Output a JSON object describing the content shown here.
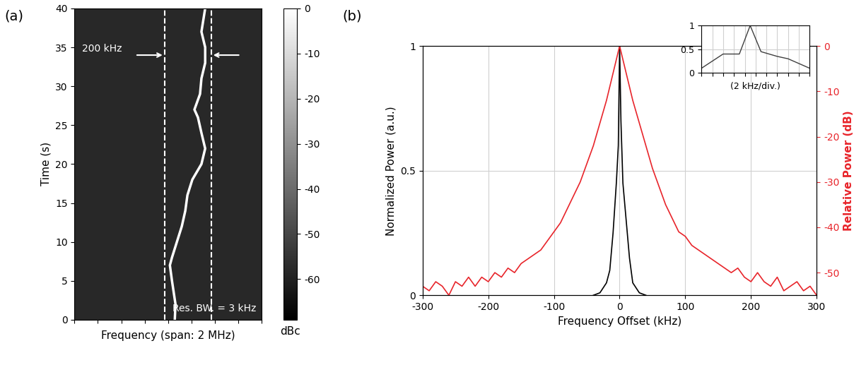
{
  "chart_data": [
    {
      "panel_label": "(a)",
      "type": "spectrogram",
      "x_label": "Frequency (span: 2 MHz)",
      "y_label": "Time (s)",
      "xlim": [
        -400,
        400
      ],
      "xticks": [
        -400,
        -300,
        -200,
        -100,
        0,
        100,
        200,
        300,
        400
      ],
      "ylim": [
        0,
        40
      ],
      "yticks": [
        0,
        5,
        10,
        15,
        20,
        25,
        30,
        35,
        40
      ],
      "tick_labels": "y",
      "grid": false,
      "color": "gray",
      "background_level": -58,
      "trace": {
        "level": 0,
        "time": [
          0,
          2,
          5,
          7,
          8,
          10,
          12,
          14,
          16,
          18,
          20,
          22,
          24,
          26,
          27,
          29,
          31,
          33,
          35,
          37,
          40
        ],
        "frequency": [
          29,
          32,
          17,
          8,
          17,
          38,
          59,
          74,
          83,
          104,
          143,
          159,
          143,
          128,
          113,
          137,
          143,
          159,
          159,
          143,
          159
        ]
      },
      "markers": [
        -15,
        185
      ],
      "annotations": [
        "200 kHz",
        "Res. BW. = 3 kHz"
      ],
      "colorbar": {
        "range": [
          -69,
          0
        ],
        "ticks": [
          0,
          -10,
          -20,
          -30,
          -40,
          -50,
          -60
        ],
        "label": "dBc"
      }
    },
    {
      "panel_label": "(b)",
      "type": "line",
      "x_label": "Frequency Offset (kHz)",
      "y_label": "Normalized Power (a.u.)",
      "y2_label": "Relative Power (dB)",
      "xlim": [
        -300,
        300
      ],
      "xticks": [
        -300,
        -200,
        -100,
        0,
        100,
        200,
        300
      ],
      "ylim": [
        0,
        1
      ],
      "yticks": [
        0,
        0.5,
        1
      ],
      "y2lim": [
        -55,
        0
      ],
      "y2ticks": [
        0,
        -10,
        -20,
        -30,
        -40,
        -50
      ],
      "grid": true,
      "series": [
        {
          "color": "#000000",
          "x": [
            -40,
            -30,
            -20,
            -15,
            -10,
            -5,
            -2,
            0,
            2,
            5,
            10,
            15,
            20,
            30,
            40
          ],
          "values": [
            0,
            0.01,
            0.05,
            0.1,
            0.25,
            0.45,
            0.6,
            1,
            0.7,
            0.45,
            0.3,
            0.15,
            0.05,
            0.01,
            0
          ]
        },
        {
          "color": "#e8252b",
          "axis": "y2",
          "x": [
            -300,
            -290,
            -280,
            -270,
            -260,
            -250,
            -240,
            -230,
            -220,
            -210,
            -200,
            -190,
            -180,
            -170,
            -160,
            -150,
            -140,
            -130,
            -120,
            -110,
            -100,
            -90,
            -80,
            -70,
            -60,
            -50,
            -40,
            -30,
            -20,
            -10,
            0,
            10,
            20,
            30,
            40,
            50,
            60,
            70,
            80,
            90,
            100,
            110,
            120,
            130,
            140,
            150,
            160,
            170,
            180,
            190,
            200,
            210,
            220,
            230,
            240,
            250,
            260,
            270,
            280,
            290,
            300
          ],
          "values": [
            -53,
            -54,
            -52,
            -53,
            -55,
            -52,
            -53,
            -51,
            -53,
            -51,
            -52,
            -50,
            -51,
            -49,
            -50,
            -48,
            -47,
            -46,
            -45,
            -43,
            -41,
            -39,
            -36,
            -33,
            -30,
            -26,
            -22,
            -17,
            -12,
            -6,
            0,
            -6,
            -12,
            -17,
            -22,
            -27,
            -31,
            -35,
            -38,
            -41,
            -42,
            -44,
            -45,
            -46,
            -47,
            -48,
            -49,
            -50,
            -49,
            -51,
            -52,
            -50,
            -52,
            -53,
            -51,
            -54,
            -53,
            -52,
            -54,
            -53,
            -55
          ]
        }
      ],
      "inset": {
        "x_label": "(2 kHz/div.)",
        "xlim": [
          -10,
          10
        ],
        "xticks": [
          -10,
          -8,
          -6,
          -4,
          -2,
          0,
          2,
          4,
          6,
          8,
          10
        ],
        "ylim": [
          0,
          1
        ],
        "yticks": [
          0,
          0.5,
          1
        ],
        "tick_labels": "y",
        "grid": true,
        "series": [
          {
            "color": "#404040",
            "x": [
              -10,
              -6,
              -3,
              -1,
              1,
              4,
              6,
              10
            ],
            "values": [
              0.1,
              0.4,
              0.4,
              1,
              0.45,
              0.35,
              0.3,
              0.1
            ]
          }
        ]
      }
    }
  ]
}
